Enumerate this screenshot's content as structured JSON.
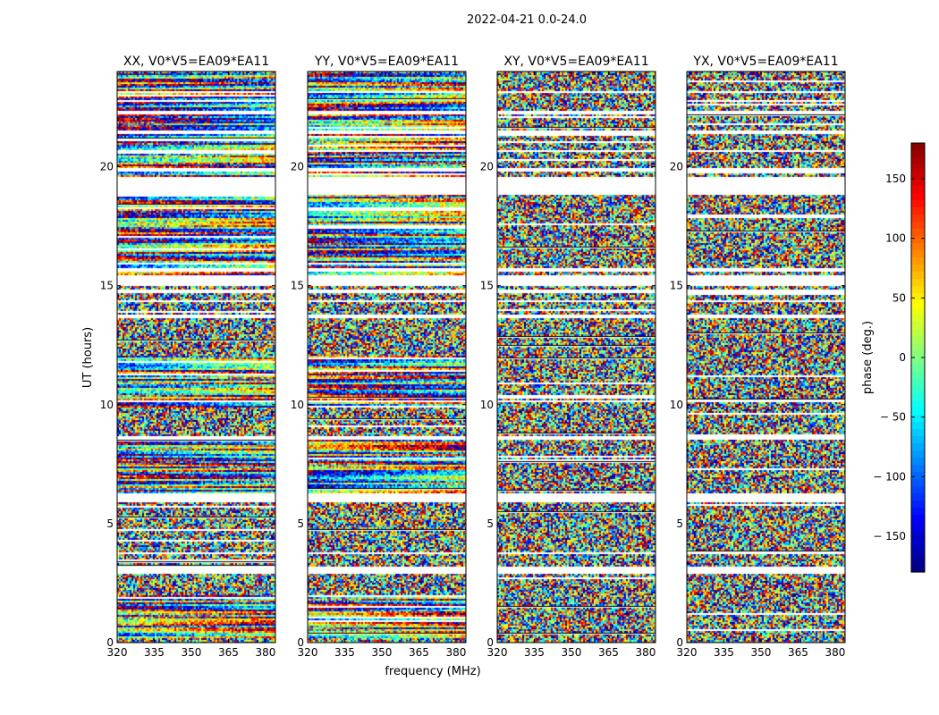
{
  "figure": {
    "suptitle": "2022-04-21 0.0-24.0"
  },
  "chart_data": {
    "type": "heatmap",
    "title": "2022-04-21 0.0-24.0",
    "xlabel": "frequency (MHz)",
    "ylabel": "UT (hours)",
    "xlim": [
      320,
      384
    ],
    "ylim": [
      0,
      24
    ],
    "x_ticks": [
      320,
      335,
      350,
      365,
      380
    ],
    "y_ticks": [
      0,
      5,
      10,
      15,
      20
    ],
    "panels": [
      {
        "title": "XX, V0*V5=EA09*EA11",
        "polarization": "XX",
        "baseline": "V0*V5=EA09*EA11"
      },
      {
        "title": "YY, V0*V5=EA09*EA11",
        "polarization": "YY",
        "baseline": "V0*V5=EA09*EA11"
      },
      {
        "title": "XY, V0*V5=EA09*EA11",
        "polarization": "XY",
        "baseline": "V0*V5=EA09*EA11"
      },
      {
        "title": "YX, V0*V5=EA09*EA11",
        "polarization": "YX",
        "baseline": "V0*V5=EA09*EA11"
      }
    ],
    "colorbar": {
      "label": "phase (deg.)",
      "range": [
        -180,
        180
      ],
      "ticks": [
        150,
        100,
        50,
        0,
        -50,
        -100,
        -150
      ],
      "tick_labels": [
        "150",
        "100",
        "50",
        "0",
        "− 50",
        "− 100",
        "− 150"
      ],
      "colormap": "jet"
    },
    "blank_ut_ranges": [
      [
        2.95,
        3.25
      ],
      [
        3.75,
        3.85
      ],
      [
        5.95,
        6.3
      ],
      [
        8.6,
        8.72
      ],
      [
        10.15,
        10.25
      ],
      [
        13.7,
        13.85
      ],
      [
        14.35,
        14.45
      ],
      [
        14.7,
        14.85
      ],
      [
        15.05,
        15.45
      ],
      [
        15.6,
        15.75
      ],
      [
        18.85,
        19.6
      ],
      [
        19.85,
        19.95
      ],
      [
        20.65,
        20.75
      ],
      [
        21.4,
        21.55
      ],
      [
        22.25,
        22.35
      ],
      [
        23.1,
        23.18
      ]
    ]
  }
}
